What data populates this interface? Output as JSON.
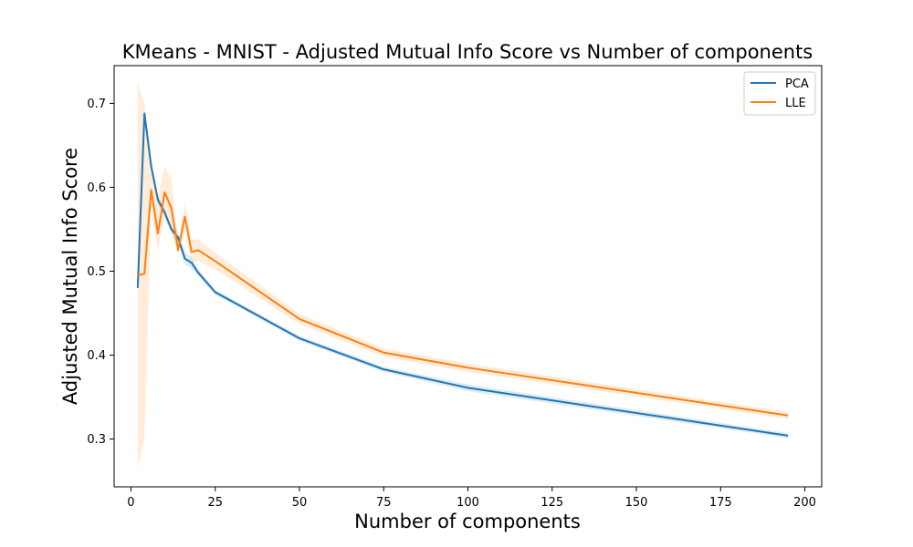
{
  "chart_data": {
    "type": "line",
    "title": "KMeans - MNIST - Adjusted Mutual Info Score vs Number of components",
    "xlabel": "Number of components",
    "ylabel": "Adjusted Mutual Info Score",
    "xlim": [
      -5,
      205
    ],
    "ylim": [
      0.243,
      0.745
    ],
    "xticks": [
      0,
      25,
      50,
      75,
      100,
      125,
      150,
      175,
      200
    ],
    "yticks": [
      0.3,
      0.4,
      0.5,
      0.6,
      0.7
    ],
    "grid": false,
    "legend_position": "top-right",
    "series": [
      {
        "name": "PCA",
        "color": "#1f77b4",
        "x": [
          2,
          4,
          6,
          8,
          10,
          12,
          14,
          16,
          18,
          20,
          25,
          50,
          75,
          100,
          195
        ],
        "y": [
          0.48,
          0.688,
          0.625,
          0.585,
          0.57,
          0.55,
          0.54,
          0.515,
          0.51,
          0.498,
          0.475,
          0.42,
          0.383,
          0.361,
          0.304
        ],
        "band_lower": [
          0.478,
          0.686,
          0.622,
          0.58,
          0.565,
          0.546,
          0.532,
          0.508,
          0.503,
          0.494,
          0.472,
          0.417,
          0.38,
          0.357,
          0.301
        ],
        "band_upper": [
          0.482,
          0.69,
          0.628,
          0.59,
          0.575,
          0.554,
          0.548,
          0.522,
          0.517,
          0.502,
          0.478,
          0.423,
          0.386,
          0.365,
          0.307
        ]
      },
      {
        "name": "LLE",
        "color": "#ff7f0e",
        "x": [
          2,
          4,
          6,
          8,
          10,
          12,
          14,
          16,
          18,
          20,
          25,
          50,
          75,
          100,
          195
        ],
        "y": [
          0.495,
          0.497,
          0.597,
          0.545,
          0.594,
          0.575,
          0.525,
          0.565,
          0.523,
          0.525,
          0.512,
          0.443,
          0.403,
          0.385,
          0.328
        ],
        "band_lower": [
          0.265,
          0.3,
          0.575,
          0.525,
          0.565,
          0.545,
          0.52,
          0.55,
          0.51,
          0.512,
          0.502,
          0.437,
          0.398,
          0.38,
          0.324
        ],
        "band_upper": [
          0.725,
          0.7,
          0.635,
          0.59,
          0.625,
          0.61,
          0.535,
          0.58,
          0.538,
          0.538,
          0.522,
          0.449,
          0.408,
          0.39,
          0.332
        ]
      }
    ]
  }
}
